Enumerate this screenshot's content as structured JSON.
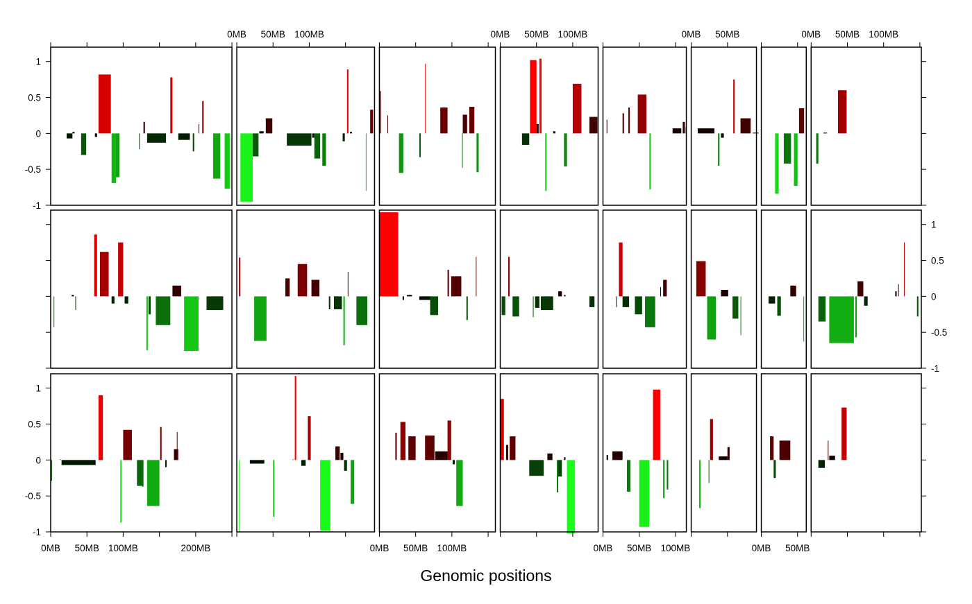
{
  "chart_data": {
    "type": "bar",
    "xlabel": "Genomic positions",
    "ylabel": "",
    "ylim": [
      -1,
      1.2
    ],
    "grid": false,
    "legend": "none",
    "y_ticks": [
      -1,
      -0.5,
      0,
      0.5,
      1
    ],
    "y_tick_labels": [
      "-1",
      "-0.5",
      "0",
      "0.5",
      "1"
    ],
    "color_scale": {
      "negative": "#1aff1a",
      "zero": "#000000",
      "positive": "#ff0000"
    },
    "panel_columns": [
      {
        "length_mb": 250,
        "ticks_mb": [
          0,
          50,
          100,
          150,
          200,
          250
        ],
        "labels": {
          "0": "0MB",
          "50": "50MB",
          "100": "100MB",
          "200": "200MB"
        },
        "label_side": "bottom"
      },
      {
        "length_mb": 190,
        "ticks_mb": [
          0,
          50,
          100,
          150
        ],
        "labels": {
          "0": "0MB",
          "50": "50MB",
          "100": "100MB"
        },
        "label_side": "top"
      },
      {
        "length_mb": 160,
        "ticks_mb": [
          0,
          50,
          100,
          150
        ],
        "labels": {
          "0": "0MB",
          "50": "50MB",
          "100": "100MB"
        },
        "label_side": "bottom"
      },
      {
        "length_mb": 135,
        "ticks_mb": [
          0,
          50,
          100
        ],
        "labels": {
          "0": "0MB",
          "50": "50MB",
          "100": "100MB"
        },
        "label_side": "top"
      },
      {
        "length_mb": 115,
        "ticks_mb": [
          0,
          50,
          100
        ],
        "labels": {
          "0": "0MB",
          "50": "50MB",
          "100": "100MB"
        },
        "label_side": "bottom"
      },
      {
        "length_mb": 90,
        "ticks_mb": [
          0,
          50
        ],
        "labels": {
          "0": "0MB",
          "50": "50MB"
        },
        "label_side": "top"
      },
      {
        "length_mb": 62,
        "ticks_mb": [
          0,
          50
        ],
        "labels": {
          "0": "0MB",
          "50": "50MB"
        },
        "label_side": "bottom"
      },
      {
        "length_mb": 152,
        "ticks_mb": [
          0,
          50,
          100,
          150
        ],
        "labels": {
          "0": "0MB",
          "50": "50MB",
          "100": "100MB"
        },
        "label_side": "top"
      }
    ],
    "rows": [
      [
        [
          [
            22,
            30,
            -0.07
          ],
          [
            30,
            33,
            0.02
          ],
          [
            42,
            49,
            -0.3
          ],
          [
            61,
            64,
            -0.05
          ],
          [
            66,
            83,
            0.82
          ],
          [
            84,
            90,
            -0.69
          ],
          [
            90,
            95,
            -0.61
          ],
          [
            122,
            123,
            -0.22
          ],
          [
            128,
            130,
            0.16
          ],
          [
            133,
            159,
            -0.13
          ],
          [
            165,
            168,
            0.78
          ],
          [
            176,
            192,
            -0.09
          ],
          [
            196,
            198,
            -0.25
          ],
          [
            204,
            205,
            0.13
          ],
          [
            209,
            211,
            0.45
          ],
          [
            224,
            234,
            -0.63
          ],
          [
            240,
            247,
            -0.77
          ]
        ],
        [
          [
            5,
            22,
            -0.95
          ],
          [
            22,
            30,
            -0.32
          ],
          [
            31,
            37,
            0.03
          ],
          [
            40,
            49,
            0.21
          ],
          [
            69,
            103,
            -0.17
          ],
          [
            104,
            107,
            -0.06
          ],
          [
            107,
            115,
            -0.35
          ],
          [
            118,
            123,
            -0.45
          ],
          [
            146,
            149,
            -0.11
          ],
          [
            152,
            154,
            0.89
          ],
          [
            156,
            159,
            0.02
          ],
          [
            178,
            179,
            -0.8
          ],
          [
            184,
            188,
            0.33
          ]
        ],
        [
          [
            0,
            2,
            0.59
          ],
          [
            11,
            12,
            0.25
          ],
          [
            27,
            33,
            -0.55
          ],
          [
            55,
            57,
            -0.33
          ],
          [
            63,
            64,
            0.97
          ],
          [
            84,
            94,
            0.36
          ],
          [
            114,
            115,
            -0.48
          ],
          [
            115,
            121,
            0.26
          ],
          [
            124,
            131,
            0.37
          ],
          [
            134,
            137,
            -0.54
          ]
        ],
        [
          [
            30,
            40,
            -0.16
          ],
          [
            41,
            50,
            1.02
          ],
          [
            50,
            53,
            0.13
          ],
          [
            54,
            57,
            1.04
          ],
          [
            62,
            64,
            -0.8
          ],
          [
            73,
            76,
            0.03
          ],
          [
            88,
            92,
            -0.46
          ],
          [
            100,
            112,
            0.69
          ],
          [
            123,
            134,
            0.23
          ]
        ],
        [
          [
            5,
            6,
            0.19
          ],
          [
            27,
            29,
            0.28
          ],
          [
            35,
            37,
            0.36
          ],
          [
            48,
            60,
            0.54
          ],
          [
            64,
            66,
            -0.78
          ],
          [
            96,
            108,
            0.07
          ],
          [
            110,
            113,
            0.16
          ],
          [
            114,
            115,
            0.09
          ]
        ],
        [
          [
            9,
            32,
            0.07
          ],
          [
            37,
            39,
            -0.45
          ],
          [
            41,
            45,
            -0.06
          ],
          [
            58,
            60,
            0.75
          ],
          [
            68,
            82,
            0.21
          ],
          [
            85,
            93,
            0.01
          ]
        ],
        [
          [
            19,
            24,
            -0.84
          ],
          [
            31,
            41,
            -0.42
          ],
          [
            45,
            50,
            -0.73
          ],
          [
            52,
            59,
            0.35
          ]
        ],
        [
          [
            7,
            10,
            -0.42
          ],
          [
            17,
            22,
            0.01
          ],
          [
            37,
            49,
            0.6
          ]
        ]
      ],
      [
        [
          [
            4,
            5,
            -0.43
          ],
          [
            29,
            32,
            0.02
          ],
          [
            34,
            35,
            -0.19
          ],
          [
            60,
            64,
            0.86
          ],
          [
            68,
            80,
            0.62
          ],
          [
            84,
            88,
            -0.1
          ],
          [
            93,
            100,
            0.75
          ],
          [
            102,
            107,
            -0.1
          ],
          [
            132,
            134,
            -0.75
          ],
          [
            135,
            138,
            -0.25
          ],
          [
            145,
            165,
            -0.4
          ],
          [
            168,
            180,
            0.15
          ],
          [
            184,
            204,
            -0.76
          ],
          [
            215,
            238,
            -0.19
          ]
        ],
        [
          [
            3,
            5,
            0.54
          ],
          [
            24,
            41,
            -0.62
          ],
          [
            67,
            73,
            0.25
          ],
          [
            84,
            97,
            0.45
          ],
          [
            103,
            114,
            0.23
          ],
          [
            127,
            129,
            -0.18
          ],
          [
            134,
            145,
            -0.18
          ],
          [
            147,
            149,
            -0.68
          ],
          [
            153,
            154,
            0.34
          ],
          [
            165,
            180,
            -0.4
          ]
        ],
        [
          [
            0,
            26,
            1.17
          ],
          [
            32,
            34,
            -0.05
          ],
          [
            38,
            45,
            0.02
          ],
          [
            55,
            70,
            -0.05
          ],
          [
            70,
            81,
            -0.26
          ],
          [
            94,
            96,
            0.37
          ],
          [
            99,
            113,
            0.28
          ],
          [
            120,
            122,
            -0.33
          ],
          [
            133,
            134,
            0.55
          ]
        ],
        [
          [
            2,
            7,
            -0.26
          ],
          [
            11,
            13,
            0.55
          ],
          [
            17,
            26,
            -0.28
          ],
          [
            45,
            46,
            -0.29
          ],
          [
            48,
            54,
            -0.16
          ],
          [
            56,
            73,
            -0.19
          ],
          [
            80,
            85,
            0.07
          ],
          [
            88,
            90,
            0.02
          ],
          [
            123,
            130,
            -0.15
          ]
        ],
        [
          [
            18,
            19,
            -0.15
          ],
          [
            22,
            27,
            0.75
          ],
          [
            27,
            36,
            -0.15
          ],
          [
            44,
            54,
            -0.25
          ],
          [
            58,
            72,
            -0.43
          ],
          [
            79,
            80,
            0.13
          ],
          [
            83,
            88,
            0.23
          ]
        ],
        [
          [
            7,
            20,
            0.49
          ],
          [
            22,
            34,
            -0.6
          ],
          [
            41,
            51,
            0.09
          ],
          [
            57,
            65,
            -0.31
          ],
          [
            68,
            69,
            -0.54
          ]
        ],
        [
          [
            10,
            19,
            -0.1
          ],
          [
            22,
            27,
            -0.27
          ],
          [
            40,
            48,
            0.15
          ],
          [
            58,
            59,
            -0.63
          ]
        ],
        [
          [
            10,
            20,
            -0.35
          ],
          [
            25,
            59,
            -0.65
          ],
          [
            61,
            63,
            -0.57
          ],
          [
            64,
            72,
            0.21
          ],
          [
            73,
            78,
            -0.13
          ],
          [
            116,
            118,
            0.07
          ],
          [
            120,
            121,
            0.17
          ],
          [
            128,
            129,
            0.75
          ],
          [
            146,
            148,
            -0.28
          ]
        ]
      ],
      [
        [
          [
            1,
            2,
            -0.29
          ],
          [
            13,
            14,
            0.01
          ],
          [
            15,
            62,
            -0.07
          ],
          [
            66,
            72,
            0.9
          ],
          [
            96,
            98,
            -0.87
          ],
          [
            100,
            112,
            0.42
          ],
          [
            119,
            126,
            -0.36
          ],
          [
            126,
            128,
            -0.37
          ],
          [
            133,
            150,
            -0.64
          ],
          [
            151,
            153,
            0.46
          ],
          [
            158,
            160,
            -0.1
          ],
          [
            170,
            176,
            0.15
          ],
          [
            174,
            175,
            0.39
          ]
        ],
        [
          [
            3,
            4,
            -1.0
          ],
          [
            18,
            38,
            -0.05
          ],
          [
            50,
            52,
            -0.79
          ],
          [
            77,
            78,
            0.01
          ],
          [
            80,
            82,
            1.17
          ],
          [
            89,
            95,
            -0.08
          ],
          [
            98,
            102,
            0.61
          ],
          [
            115,
            129,
            -0.98
          ],
          [
            136,
            142,
            0.19
          ],
          [
            143,
            147,
            0.1
          ],
          [
            148,
            152,
            -0.15
          ],
          [
            157,
            162,
            -0.61
          ]
        ],
        [
          [
            22,
            24,
            0.38
          ],
          [
            29,
            36,
            0.53
          ],
          [
            40,
            50,
            0.33
          ],
          [
            63,
            76,
            0.34
          ],
          [
            77,
            94,
            0.12
          ],
          [
            94,
            99,
            0.55
          ],
          [
            101,
            104,
            -0.06
          ],
          [
            106,
            115,
            -0.64
          ]
        ],
        [
          [
            0,
            5,
            0.85
          ],
          [
            8,
            11,
            0.21
          ],
          [
            13,
            21,
            0.33
          ],
          [
            40,
            60,
            -0.22
          ],
          [
            65,
            72,
            0.09
          ],
          [
            78,
            80,
            -0.45
          ],
          [
            80,
            85,
            -0.23
          ],
          [
            88,
            90,
            0.04
          ],
          [
            92,
            103,
            -1.02
          ]
        ],
        [
          [
            5,
            7,
            0.07
          ],
          [
            13,
            27,
            0.12
          ],
          [
            33,
            38,
            -0.44
          ],
          [
            50,
            64,
            -0.93
          ],
          [
            69,
            79,
            0.98
          ],
          [
            83,
            85,
            -0.53
          ],
          [
            88,
            90,
            -0.41
          ]
        ],
        [
          [
            11,
            13,
            -0.67
          ],
          [
            24,
            25,
            -0.32
          ],
          [
            26,
            30,
            0.57
          ],
          [
            38,
            50,
            0.05
          ],
          [
            50,
            53,
            0.18
          ]
        ],
        [
          [
            12,
            17,
            0.33
          ],
          [
            17,
            20,
            -0.25
          ],
          [
            25,
            40,
            0.27
          ]
        ],
        [
          [
            10,
            19,
            -0.11
          ],
          [
            23,
            24,
            0.27
          ],
          [
            25,
            33,
            0.06
          ],
          [
            42,
            49,
            0.73
          ]
        ]
      ]
    ]
  }
}
